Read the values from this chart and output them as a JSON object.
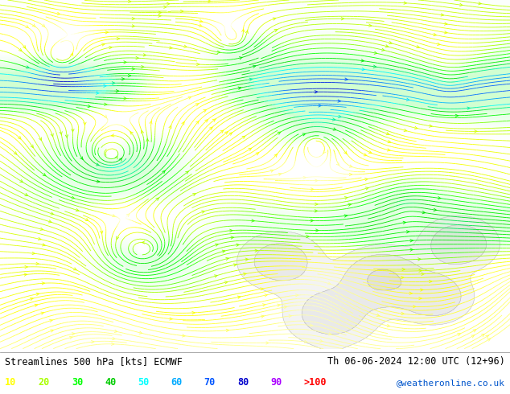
{
  "title_left": "Streamlines 500 hPa [kts] ECMWF",
  "title_right": "Th 06-06-2024 12:00 UTC (12+96)",
  "legend_values": [
    "10",
    "20",
    "30",
    "40",
    "50",
    "60",
    "70",
    "80",
    "90",
    ">100"
  ],
  "legend_colors": [
    "#ffff00",
    "#aaff00",
    "#00ff00",
    "#00cc00",
    "#00ffff",
    "#00aaff",
    "#0055ff",
    "#0000cc",
    "#aa00ff",
    "#ff0000"
  ],
  "watermark": "@weatheronline.co.uk",
  "bg_color": "#ffffff",
  "speed_color_stops": [
    [
      0,
      "#ffffff"
    ],
    [
      15,
      "#ffff00"
    ],
    [
      25,
      "#aaff00"
    ],
    [
      35,
      "#00ff00"
    ],
    [
      45,
      "#00dd00"
    ],
    [
      55,
      "#00ffff"
    ],
    [
      65,
      "#00aaff"
    ],
    [
      75,
      "#0055ff"
    ],
    [
      85,
      "#0000cc"
    ],
    [
      95,
      "#aa00ff"
    ],
    [
      110,
      "#ff0000"
    ]
  ]
}
